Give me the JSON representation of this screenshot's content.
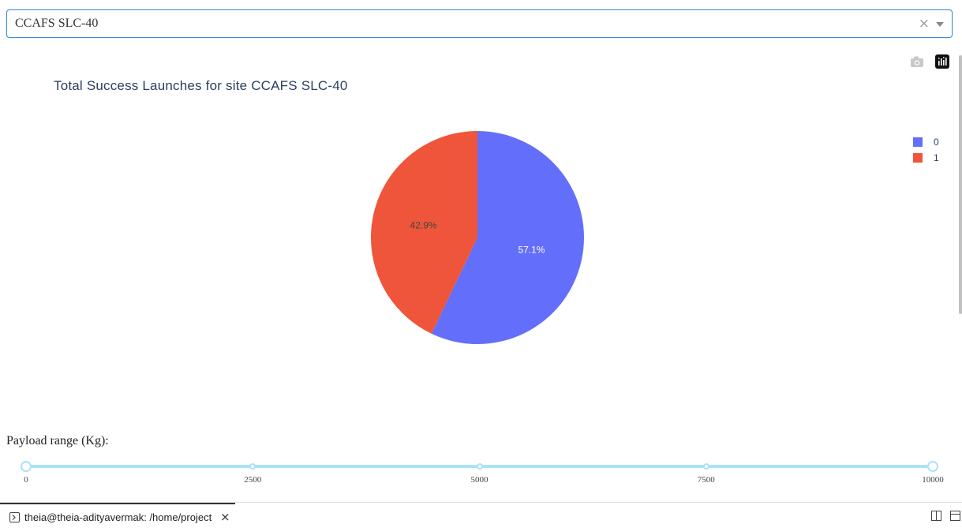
{
  "dropdown": {
    "selected": "CCAFS SLC-40",
    "clear_symbol": "×",
    "icons": [
      "clear-icon",
      "chevron-down-icon"
    ]
  },
  "modebar": {
    "buttons": [
      "camera-icon",
      "plotly-logo-icon"
    ]
  },
  "chart_data": {
    "type": "pie",
    "title": "Total Success Launches for site CCAFS SLC-40",
    "labels": [
      "0",
      "1"
    ],
    "values": [
      57.1,
      42.9
    ],
    "percent_labels": [
      "57.1%",
      "42.9%"
    ],
    "colors": [
      "#636efa",
      "#ef553b"
    ],
    "label_colors": [
      "#ffffff",
      "#444444"
    ],
    "legend": "right"
  },
  "slider": {
    "label": "Payload range (Kg):",
    "min": 0,
    "max": 10000,
    "selected_range": [
      0,
      10000
    ],
    "marks": [
      "0",
      "2500",
      "5000",
      "7500",
      "10000"
    ],
    "color": "#abe2fb"
  },
  "terminal": {
    "tab_label": "theia@theia-adityavermak: /home/project",
    "close_symbol": "×"
  }
}
